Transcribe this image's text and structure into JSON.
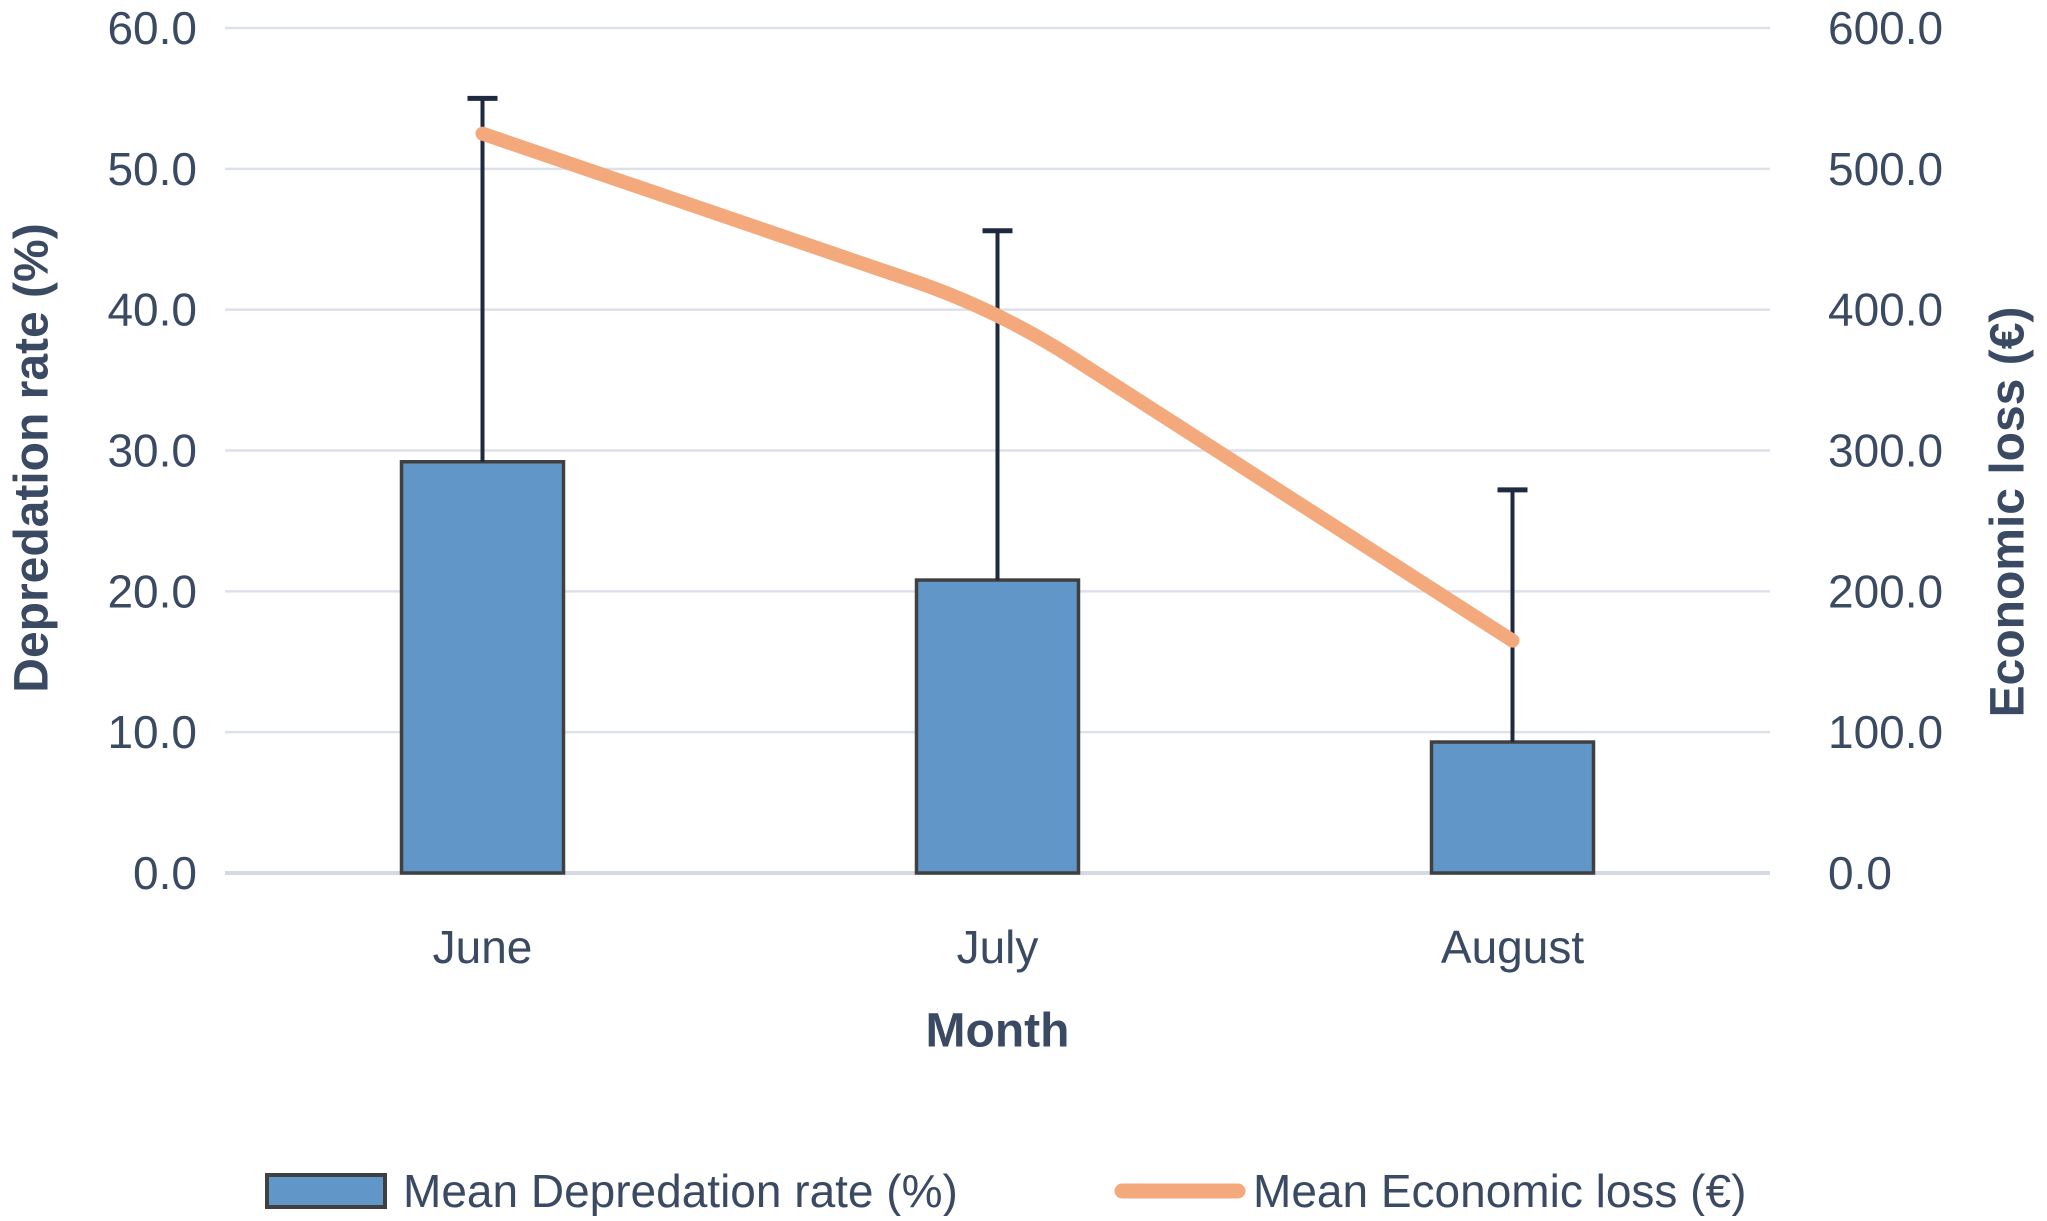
{
  "chart_data": {
    "type": "combo-bar-line",
    "title": "",
    "categories": [
      "June",
      "July",
      "August"
    ],
    "series": [
      {
        "name": "Mean Depredation rate (%)",
        "type": "bar",
        "axis": "left",
        "values": [
          29.2,
          20.8,
          9.3
        ],
        "error_plus": [
          25.8,
          24.8,
          17.9
        ],
        "fill": "#6196C8",
        "stroke": "#404040"
      },
      {
        "name": "Mean Economic loss (€)",
        "type": "line",
        "axis": "right",
        "values": [
          525,
          400,
          165
        ],
        "color": "#F4A97C"
      }
    ],
    "left_axis": {
      "title": "Depredation rate (%)",
      "min": 0,
      "max": 60,
      "step": 10,
      "tick_labels": [
        "0.0",
        "10.0",
        "20.0",
        "30.0",
        "40.0",
        "50.0",
        "60.0"
      ]
    },
    "right_axis": {
      "title": "Economic loss (€)",
      "min": 0,
      "max": 600,
      "step": 100,
      "tick_labels": [
        "0.0",
        "100.0",
        "200.0",
        "300.0",
        "400.0",
        "500.0",
        "600.0"
      ]
    },
    "x_axis": {
      "title": "Month"
    },
    "legend": {
      "position": "bottom",
      "items": [
        {
          "label": "Mean Depredation rate (%)",
          "swatch": "bar"
        },
        {
          "label": "Mean Economic loss (€)",
          "swatch": "line"
        }
      ]
    },
    "grid": true,
    "colors": {
      "bar_fill": "#6196C8",
      "bar_border": "#404040",
      "line": "#F4A97C",
      "error_bar": "#1F2A40",
      "gridline": "#DDE1E9",
      "baseline": "#D4D9E2",
      "text": "#3B4A63"
    }
  }
}
